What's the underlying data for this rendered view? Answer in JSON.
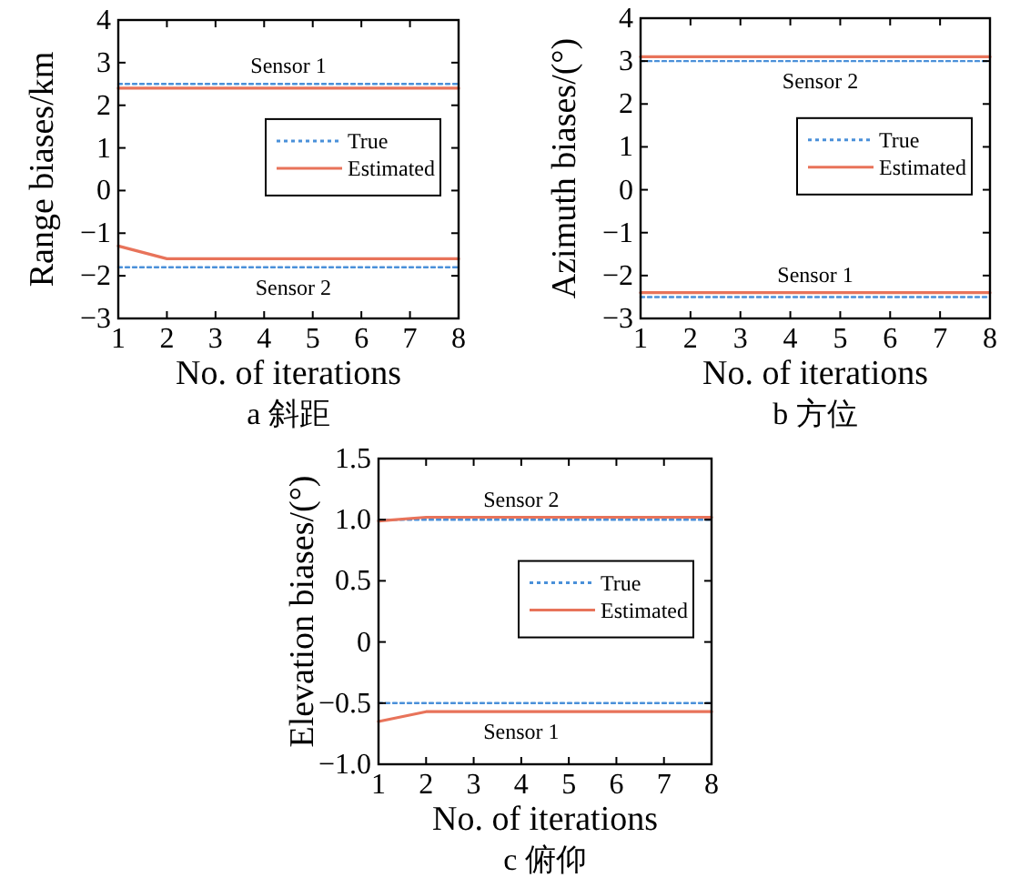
{
  "chart_data": [
    {
      "type": "line",
      "title": "a 斜距",
      "xlabel": "No. of iterations",
      "ylabel": "Range biases/km",
      "x": [
        1,
        2,
        3,
        4,
        5,
        6,
        7,
        8
      ],
      "xlim": [
        1,
        8
      ],
      "xticks": [
        1,
        2,
        3,
        4,
        5,
        6,
        7,
        8
      ],
      "ylim": [
        -3,
        4
      ],
      "yticks": [
        {
          "value": -3,
          "label": "−3"
        },
        {
          "value": -2,
          "label": "−2"
        },
        {
          "value": -1,
          "label": "−1"
        },
        0,
        1,
        2,
        3,
        4
      ],
      "legend": "right",
      "grid": false,
      "marker": "none",
      "series": [
        {
          "name": "True",
          "color": "#4a90d9",
          "line_style": "dotted",
          "values": [
            2.5,
            2.5,
            2.5,
            2.5,
            2.5,
            2.5,
            2.5,
            2.5
          ]
        },
        {
          "name": "Estimated",
          "color": "#e8735a",
          "line_style": "solid",
          "values": [
            2.4,
            2.4,
            2.4,
            2.4,
            2.4,
            2.4,
            2.4,
            2.4
          ]
        },
        {
          "color": "#4a90d9",
          "line_style": "dotted",
          "values": [
            -1.8,
            -1.8,
            -1.8,
            -1.8,
            -1.8,
            -1.8,
            -1.8,
            -1.8
          ]
        },
        {
          "color": "#e8735a",
          "line_style": "solid",
          "values": [
            -1.3,
            -1.6,
            -1.6,
            -1.6,
            -1.6,
            -1.6,
            -1.6,
            -1.6
          ]
        }
      ],
      "annotations": [
        {
          "text": "Sensor 1",
          "x": 4.5,
          "y": 2.5
        },
        {
          "text": "Sensor 2",
          "x": 4.6,
          "y": -1.8
        }
      ]
    },
    {
      "type": "line",
      "title": "b 方位",
      "xlabel": "No. of iterations",
      "ylabel": "Azimuth biases/(°)",
      "x": [
        1,
        2,
        3,
        4,
        5,
        6,
        7,
        8
      ],
      "xlim": [
        1,
        8
      ],
      "xticks": [
        1,
        2,
        3,
        4,
        5,
        6,
        7,
        8
      ],
      "ylim": [
        -3,
        4
      ],
      "yticks": [
        {
          "value": -3,
          "label": "−3"
        },
        {
          "value": -2,
          "label": "−2"
        },
        {
          "value": -1,
          "label": "−1"
        },
        0,
        1,
        2,
        3,
        4
      ],
      "legend": "right",
      "grid": false,
      "marker": "none",
      "series": [
        {
          "name": "True",
          "color": "#4a90d9",
          "line_style": "dotted",
          "values": [
            3.0,
            3.0,
            3.0,
            3.0,
            3.0,
            3.0,
            3.0,
            3.0
          ]
        },
        {
          "name": "Estimated",
          "color": "#e8735a",
          "line_style": "solid",
          "values": [
            3.1,
            3.1,
            3.1,
            3.1,
            3.1,
            3.1,
            3.1,
            3.1
          ]
        },
        {
          "color": "#4a90d9",
          "line_style": "dotted",
          "values": [
            -2.5,
            -2.5,
            -2.5,
            -2.5,
            -2.5,
            -2.5,
            -2.5,
            -2.5
          ]
        },
        {
          "color": "#e8735a",
          "line_style": "solid",
          "values": [
            -2.4,
            -2.4,
            -2.4,
            -2.4,
            -2.4,
            -2.4,
            -2.4,
            -2.4
          ]
        }
      ],
      "annotations": [
        {
          "text": "Sensor 2",
          "x": 4.6,
          "y": 3.0
        },
        {
          "text": "Sensor 1",
          "x": 4.5,
          "y": -2.4
        }
      ]
    },
    {
      "type": "line",
      "title": "c 俯仰",
      "xlabel": "No. of iterations",
      "ylabel": "Elevation biases/(°)",
      "x": [
        1,
        2,
        3,
        4,
        5,
        6,
        7,
        8
      ],
      "xlim": [
        1,
        8
      ],
      "xticks": [
        1,
        2,
        3,
        4,
        5,
        6,
        7,
        8
      ],
      "ylim": [
        -1.0,
        1.5
      ],
      "yticks": [
        {
          "value": -1.0,
          "label": "−1.0"
        },
        {
          "value": -0.5,
          "label": "−0.5"
        },
        0,
        {
          "value": 0.5,
          "label": "0.5"
        },
        {
          "value": 1.0,
          "label": "1.0"
        },
        {
          "value": 1.5,
          "label": "1.5"
        }
      ],
      "legend": "right",
      "grid": false,
      "marker": "none",
      "series": [
        {
          "name": "True",
          "color": "#4a90d9",
          "line_style": "dotted",
          "values": [
            1.0,
            1.0,
            1.0,
            1.0,
            1.0,
            1.0,
            1.0,
            1.0
          ]
        },
        {
          "name": "Estimated",
          "color": "#e8735a",
          "line_style": "solid",
          "values": [
            0.99,
            1.02,
            1.02,
            1.02,
            1.02,
            1.02,
            1.02,
            1.02
          ]
        },
        {
          "color": "#4a90d9",
          "line_style": "dotted",
          "values": [
            -0.5,
            -0.5,
            -0.5,
            -0.5,
            -0.5,
            -0.5,
            -0.5,
            -0.5
          ]
        },
        {
          "color": "#e8735a",
          "line_style": "solid",
          "values": [
            -0.65,
            -0.57,
            -0.57,
            -0.57,
            -0.57,
            -0.57,
            -0.57,
            -0.57
          ]
        }
      ],
      "annotations": [
        {
          "text": "Sensor 2",
          "x": 4.0,
          "y": 1.02
        },
        {
          "text": "Sensor 1",
          "x": 4.0,
          "y": -0.57
        }
      ]
    }
  ]
}
